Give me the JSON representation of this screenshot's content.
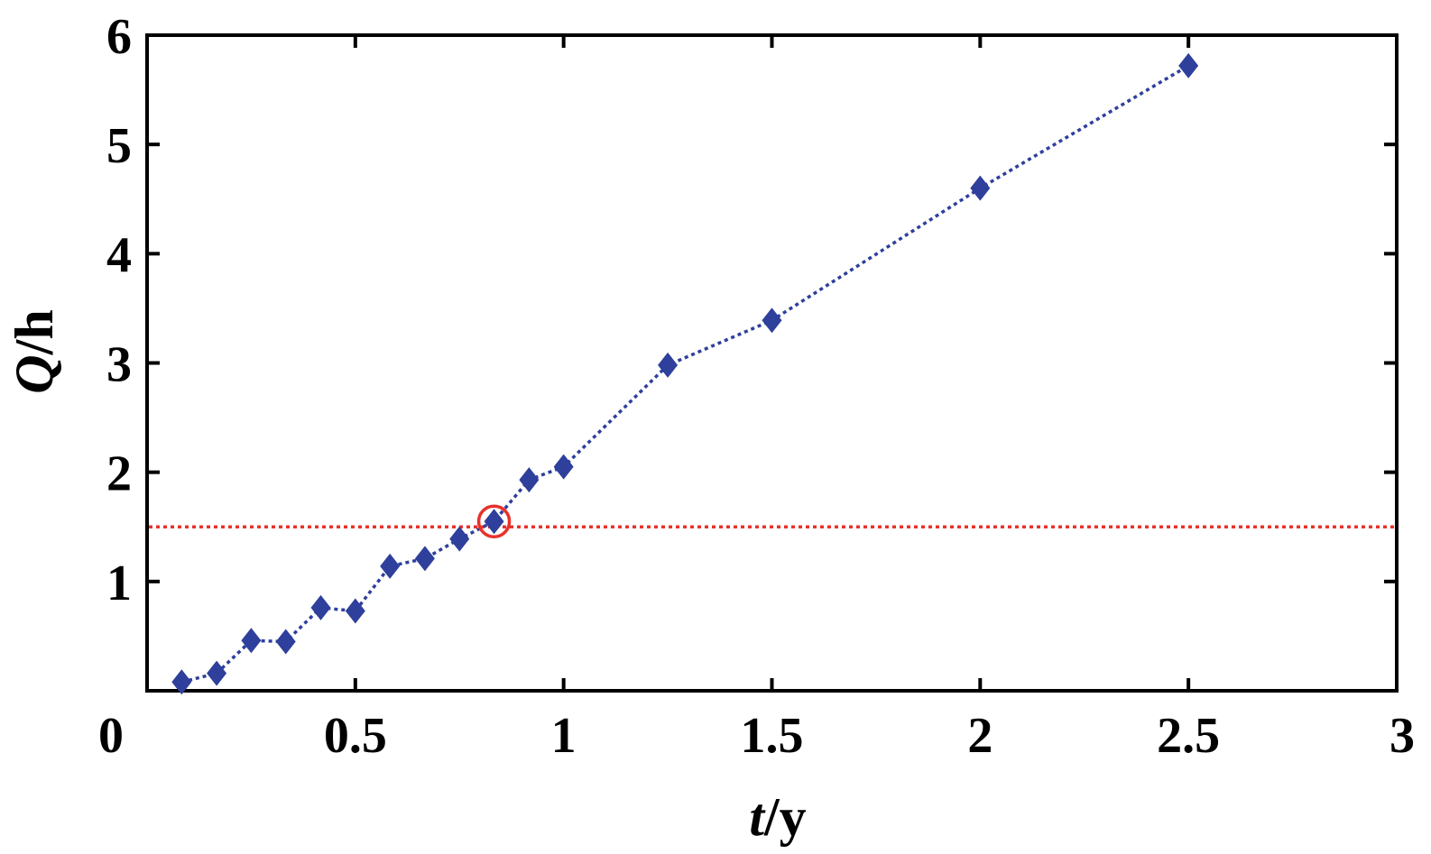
{
  "chart_data": {
    "type": "scatter",
    "xlabel": {
      "var": "t",
      "unit": "/y"
    },
    "ylabel": {
      "var": "Q",
      "unit": "/h"
    },
    "xlim": [
      0,
      3
    ],
    "ylim": [
      0,
      6
    ],
    "x_ticks": [
      {
        "value": 0,
        "label": "0"
      },
      {
        "value": 0.5,
        "label": "0.5"
      },
      {
        "value": 1,
        "label": "1"
      },
      {
        "value": 1.5,
        "label": "1.5"
      },
      {
        "value": 2,
        "label": "2"
      },
      {
        "value": 2.5,
        "label": "2.5"
      },
      {
        "value": 3,
        "label": "3"
      }
    ],
    "y_ticks": [
      {
        "value": 1,
        "label": "1"
      },
      {
        "value": 2,
        "label": "2"
      },
      {
        "value": 3,
        "label": "3"
      },
      {
        "value": 4,
        "label": "4"
      },
      {
        "value": 5,
        "label": "5"
      },
      {
        "value": 6,
        "label": "6"
      }
    ],
    "grid": false,
    "series": [
      {
        "marker": "diamond",
        "line_style": "dotted",
        "color": "#2E3F9C",
        "x": [
          0.083,
          0.167,
          0.25,
          0.333,
          0.417,
          0.5,
          0.583,
          0.667,
          0.75,
          0.833,
          0.917,
          1.0,
          1.25,
          1.5,
          2.0,
          2.5
        ],
        "y": [
          0.08,
          0.16,
          0.46,
          0.45,
          0.76,
          0.73,
          1.14,
          1.21,
          1.39,
          1.55,
          1.93,
          2.05,
          2.98,
          3.39,
          4.6,
          5.72
        ]
      }
    ],
    "reference_line": {
      "orientation": "horizontal",
      "y": 1.5,
      "color": "#E8322B",
      "line_style": "dotted"
    },
    "highlight": {
      "x": 0.833,
      "y": 1.55,
      "shape": "circle",
      "color": "#E8322B"
    }
  }
}
